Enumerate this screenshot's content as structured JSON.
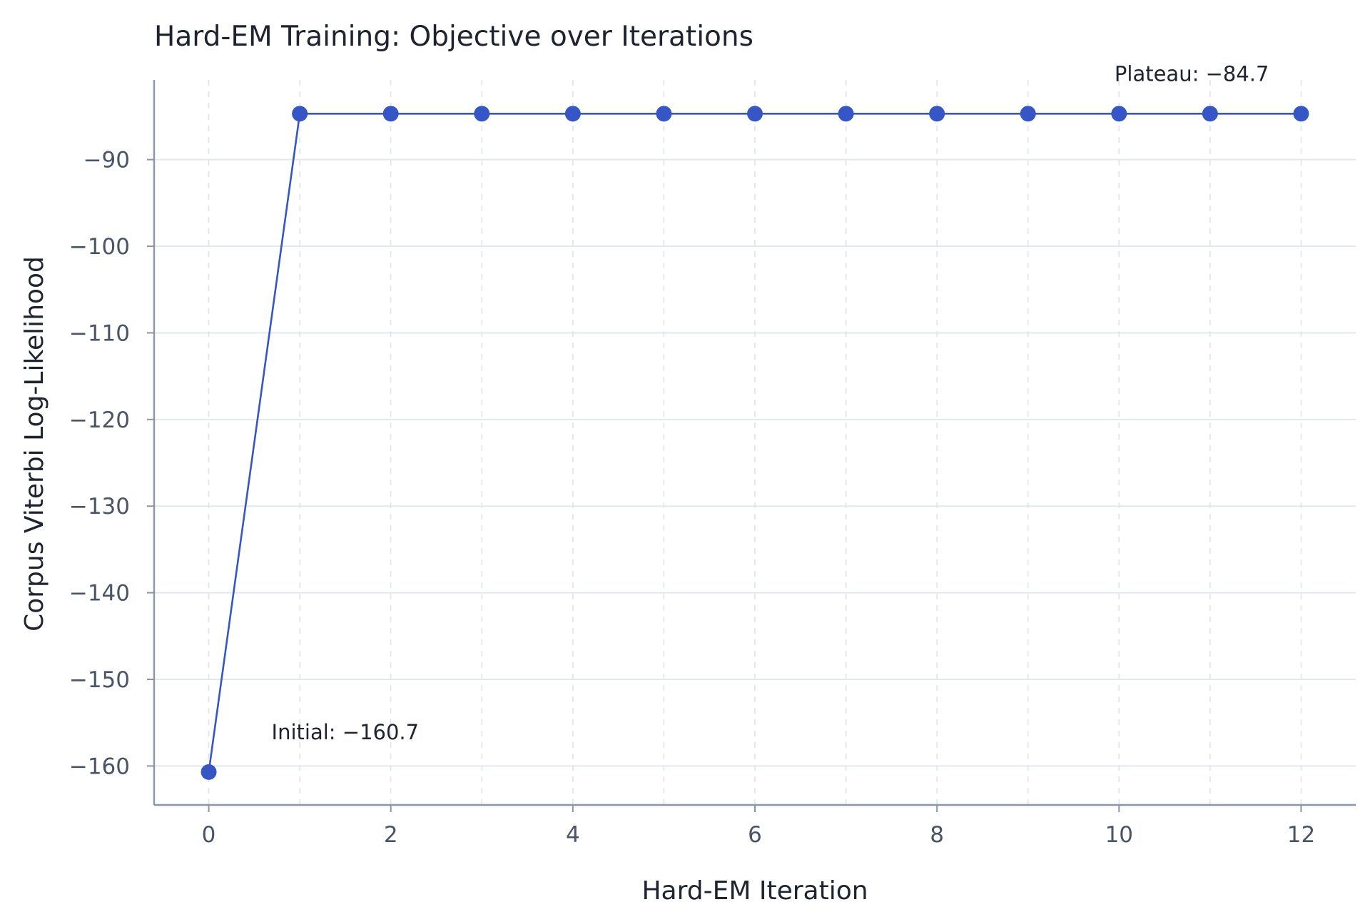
{
  "chart_data": {
    "type": "line",
    "title": "Hard-EM Training: Objective over Iterations",
    "xlabel": "Hard-EM Iteration",
    "ylabel": "Corpus Viterbi Log-Likelihood",
    "xlim": [
      -0.6,
      12.6
    ],
    "ylim": [
      -164.5,
      -80.8
    ],
    "xticks": [
      0,
      2,
      4,
      6,
      8,
      10,
      12
    ],
    "yticks": [
      -160,
      -150,
      -140,
      -130,
      -120,
      -110,
      -100,
      -90
    ],
    "grid": true,
    "series": [
      {
        "x": [
          0,
          1,
          2,
          3,
          4,
          5,
          6,
          7,
          8,
          9,
          10,
          11,
          12
        ],
        "y": [
          -160.7,
          -84.7,
          -84.7,
          -84.7,
          -84.7,
          -84.7,
          -84.7,
          -84.7,
          -84.7,
          -84.7,
          -84.7,
          -84.7,
          -84.7
        ],
        "color": "#3556c4"
      }
    ],
    "annotations": [
      {
        "text": "Initial: -160.7",
        "x": 0,
        "y": -160.7
      },
      {
        "text": "Plateau: -84.7",
        "x": 12,
        "y": -84.7
      }
    ]
  }
}
